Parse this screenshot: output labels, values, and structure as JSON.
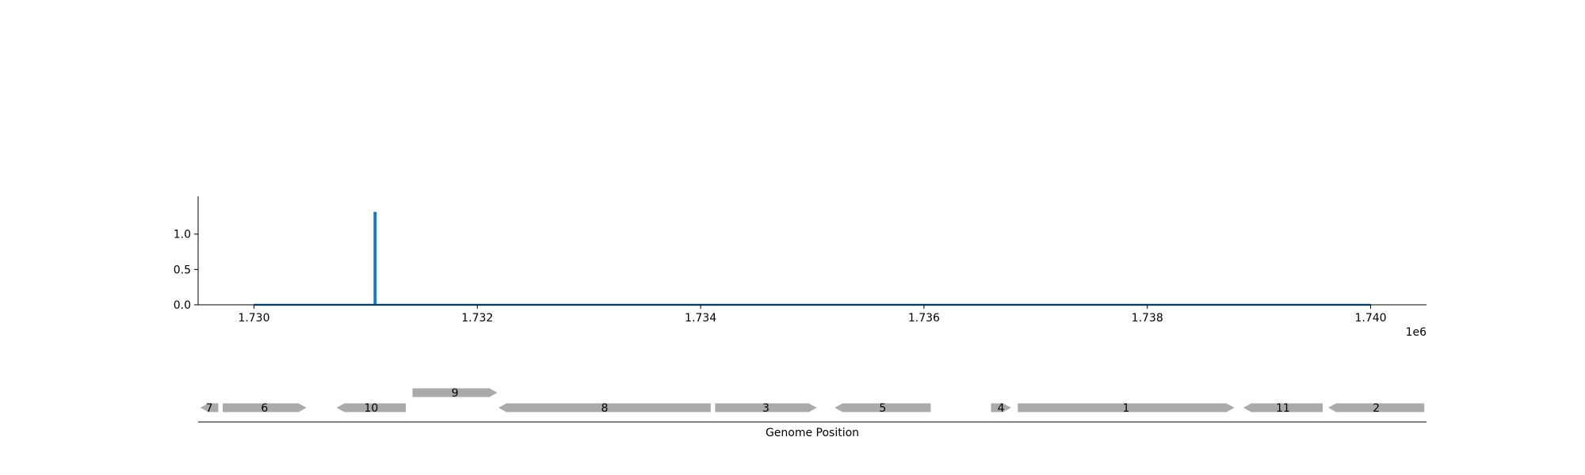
{
  "chart_data": [
    {
      "type": "line",
      "title": "",
      "xlabel": "",
      "ylabel": "",
      "x_offset_label": "1e6",
      "xlim": [
        1729500,
        1740500
      ],
      "ylim": [
        0,
        1.4
      ],
      "x_ticks": [
        1730000,
        1732000,
        1734000,
        1736000,
        1738000,
        1740000
      ],
      "x_tick_labels": [
        "1.730",
        "1.732",
        "1.734",
        "1.736",
        "1.738",
        "1.740"
      ],
      "y_ticks": [
        0.0,
        0.5,
        1.0
      ],
      "y_tick_labels": [
        "0.0",
        "0.5",
        "1.0"
      ],
      "grid": false,
      "series": [
        {
          "color": "#1f77b4",
          "points": [
            [
              1730000,
              0
            ],
            [
              1731080,
              0
            ],
            [
              1731080,
              1.3
            ],
            [
              1731090,
              1.3
            ],
            [
              1731090,
              0
            ],
            [
              1740000,
              0
            ]
          ]
        }
      ]
    },
    {
      "type": "gene-track",
      "xlabel": "Genome Position",
      "xlim": [
        1729500,
        1740500
      ],
      "feature_color": "#aaaaaa",
      "features": [
        {
          "label": "7",
          "start": 1729520,
          "end": 1729680,
          "strand": -1,
          "level": 0
        },
        {
          "label": "6",
          "start": 1729720,
          "end": 1730470,
          "strand": 1,
          "level": 0
        },
        {
          "label": "10",
          "start": 1730740,
          "end": 1731360,
          "strand": -1,
          "level": 0
        },
        {
          "label": "9",
          "start": 1731420,
          "end": 1732180,
          "strand": 1,
          "level": 1
        },
        {
          "label": "8",
          "start": 1732190,
          "end": 1734090,
          "strand": -1,
          "level": 0
        },
        {
          "label": "3",
          "start": 1734130,
          "end": 1735040,
          "strand": 1,
          "level": 0
        },
        {
          "label": "5",
          "start": 1735200,
          "end": 1736060,
          "strand": -1,
          "level": 0
        },
        {
          "label": "4",
          "start": 1736600,
          "end": 1736780,
          "strand": 1,
          "level": 0
        },
        {
          "label": "1",
          "start": 1736840,
          "end": 1738780,
          "strand": 1,
          "level": 0
        },
        {
          "label": "11",
          "start": 1738860,
          "end": 1739570,
          "strand": -1,
          "level": 0
        },
        {
          "label": "2",
          "start": 1739620,
          "end": 1740480,
          "strand": -1,
          "level": 0
        }
      ]
    }
  ]
}
